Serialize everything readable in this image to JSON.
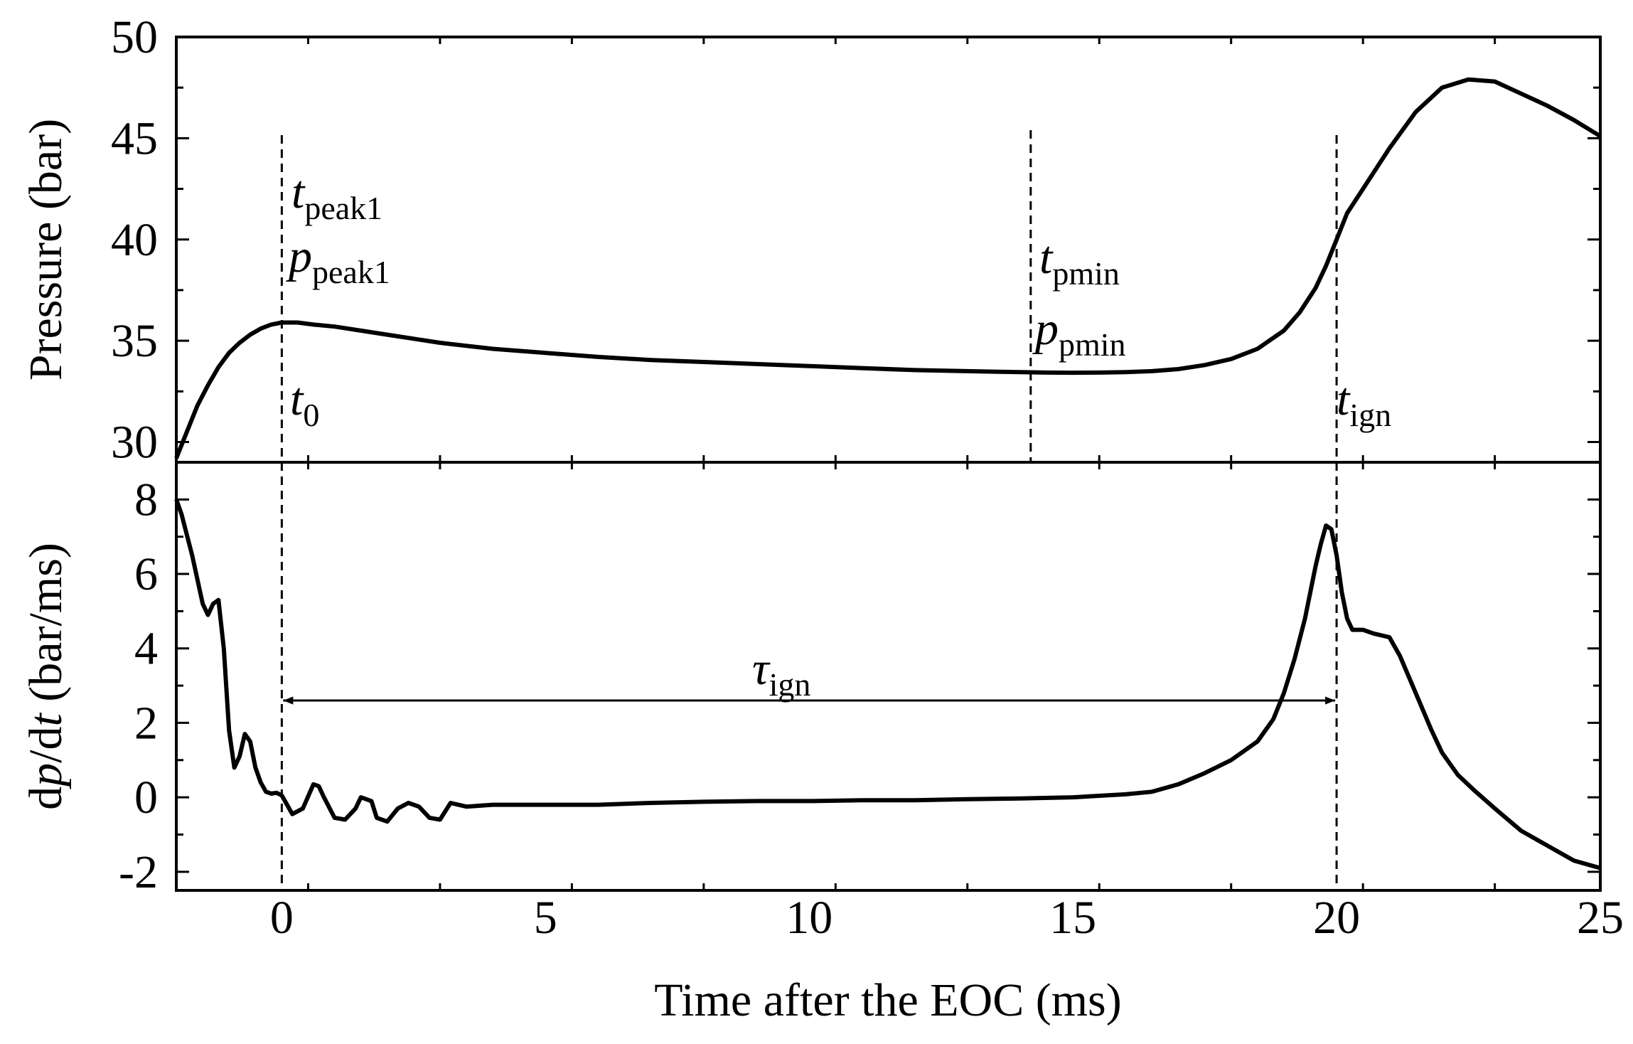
{
  "chart_data": {
    "type": "line",
    "xlabel": "Time after the EOC (ms)",
    "xlim": [
      -2,
      25
    ],
    "xticks": [
      0,
      5,
      10,
      15,
      20,
      25
    ],
    "xtick_labels": [
      "0",
      "5",
      "10",
      "15",
      "20",
      "25"
    ],
    "grid": false,
    "panels": [
      {
        "name": "pressure",
        "ylabel": "Pressure (bar)",
        "ylim": [
          29,
          50
        ],
        "yticks": [
          30,
          35,
          40,
          45,
          50
        ],
        "ytick_labels": [
          "30",
          "35",
          "40",
          "45",
          "50"
        ],
        "series": [
          {
            "name": "Pressure",
            "x": [
              -2.0,
              -1.8,
              -1.6,
              -1.4,
              -1.2,
              -1.0,
              -0.8,
              -0.6,
              -0.4,
              -0.2,
              0.0,
              0.3,
              0.6,
              1.0,
              1.5,
              2.0,
              2.5,
              3.0,
              4.0,
              5.0,
              6.0,
              7.0,
              8.0,
              9.0,
              10.0,
              11.0,
              12.0,
              13.0,
              14.0,
              14.5,
              15.0,
              15.5,
              16.0,
              16.5,
              17.0,
              17.5,
              18.0,
              18.5,
              19.0,
              19.3,
              19.6,
              19.8,
              20.0,
              20.2,
              20.5,
              21.0,
              21.5,
              22.0,
              22.5,
              23.0,
              23.5,
              24.0,
              24.5,
              25.0
            ],
            "y": [
              29.2,
              30.5,
              31.8,
              32.8,
              33.7,
              34.4,
              34.9,
              35.3,
              35.6,
              35.8,
              35.9,
              35.9,
              35.8,
              35.7,
              35.5,
              35.3,
              35.1,
              34.9,
              34.6,
              34.4,
              34.2,
              34.05,
              33.95,
              33.85,
              33.75,
              33.65,
              33.55,
              33.5,
              33.45,
              33.43,
              33.42,
              33.43,
              33.45,
              33.5,
              33.6,
              33.8,
              34.1,
              34.6,
              35.5,
              36.4,
              37.6,
              38.7,
              40.0,
              41.3,
              42.5,
              44.5,
              46.3,
              47.5,
              47.9,
              47.8,
              47.2,
              46.6,
              45.9,
              45.1
            ]
          }
        ],
        "vlines": [
          0,
          14.2,
          20
        ],
        "annotations": [
          {
            "main": "t",
            "sub": "peak1",
            "italic": true
          },
          {
            "main": "p",
            "sub": "peak1",
            "italic": true
          },
          {
            "main": "t",
            "sub": "0",
            "italic": true
          },
          {
            "main": "t",
            "sub": "pmin",
            "italic": true
          },
          {
            "main": "p",
            "sub": "pmin",
            "italic": true
          },
          {
            "main": "t",
            "sub": "ign",
            "italic": true
          }
        ]
      },
      {
        "name": "derivative",
        "ylabel": "dp/dt (bar/ms)",
        "ylabel_parts": [
          "d",
          "p",
          "/d",
          "t",
          " (bar/ms)"
        ],
        "ylim": [
          -2.5,
          9
        ],
        "yticks": [
          -2,
          0,
          2,
          4,
          6,
          8
        ],
        "ytick_labels": [
          "-2",
          "0",
          "2",
          "4",
          "6",
          "8"
        ],
        "series": [
          {
            "name": "dp/dt",
            "x": [
              -2.0,
              -1.9,
              -1.7,
              -1.5,
              -1.4,
              -1.3,
              -1.2,
              -1.1,
              -1.0,
              -0.9,
              -0.8,
              -0.7,
              -0.6,
              -0.5,
              -0.4,
              -0.3,
              -0.2,
              -0.1,
              0.0,
              0.1,
              0.2,
              0.4,
              0.6,
              0.7,
              0.8,
              1.0,
              1.2,
              1.4,
              1.5,
              1.7,
              1.8,
              2.0,
              2.2,
              2.4,
              2.6,
              2.8,
              3.0,
              3.2,
              3.5,
              4.0,
              4.5,
              5.0,
              6.0,
              7.0,
              8.0,
              9.0,
              10.0,
              11.0,
              12.0,
              13.0,
              14.0,
              15.0,
              16.0,
              16.5,
              17.0,
              17.5,
              18.0,
              18.5,
              18.8,
              19.0,
              19.2,
              19.4,
              19.6,
              19.7,
              19.8,
              19.9,
              20.0,
              20.1,
              20.2,
              20.3,
              20.5,
              20.7,
              21.0,
              21.2,
              21.5,
              21.8,
              22.0,
              22.3,
              22.6,
              23.0,
              23.5,
              24.0,
              24.5,
              25.0
            ],
            "y": [
              8.0,
              7.6,
              6.5,
              5.2,
              4.9,
              5.2,
              5.3,
              4.0,
              1.8,
              0.8,
              1.1,
              1.7,
              1.5,
              0.8,
              0.4,
              0.15,
              0.1,
              0.12,
              0.05,
              -0.2,
              -0.45,
              -0.3,
              0.35,
              0.3,
              0.0,
              -0.55,
              -0.6,
              -0.3,
              0.0,
              -0.1,
              -0.55,
              -0.65,
              -0.3,
              -0.15,
              -0.25,
              -0.55,
              -0.6,
              -0.15,
              -0.25,
              -0.2,
              -0.2,
              -0.2,
              -0.2,
              -0.15,
              -0.12,
              -0.1,
              -0.1,
              -0.08,
              -0.08,
              -0.05,
              -0.03,
              0.0,
              0.08,
              0.15,
              0.35,
              0.65,
              1.0,
              1.5,
              2.1,
              2.8,
              3.7,
              4.8,
              6.2,
              6.8,
              7.3,
              7.2,
              6.5,
              5.5,
              4.8,
              4.5,
              4.5,
              4.4,
              4.3,
              3.8,
              2.8,
              1.8,
              1.2,
              0.6,
              0.2,
              -0.3,
              -0.9,
              -1.3,
              -1.7,
              -1.9
            ]
          }
        ],
        "vlines": [
          0,
          20
        ],
        "interval": {
          "from": 0,
          "to": 20,
          "y": 2.6,
          "label_main": "τ",
          "label_sub": "ign"
        }
      }
    ]
  }
}
